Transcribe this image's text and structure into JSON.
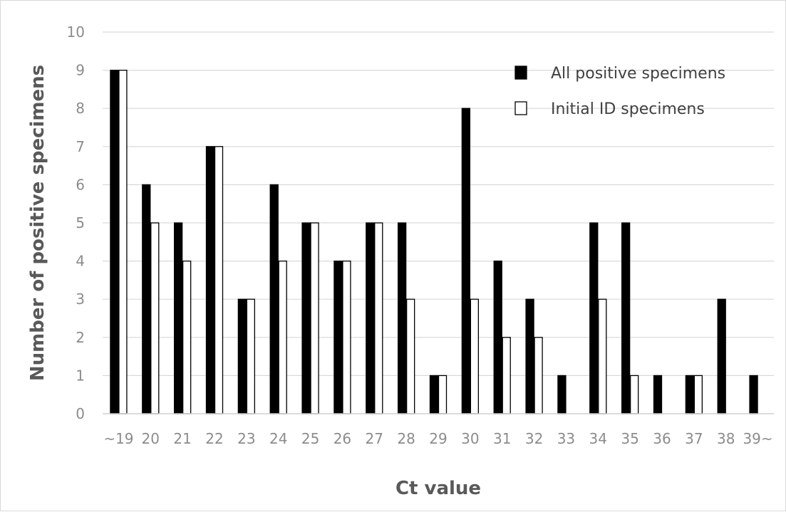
{
  "chart_data": {
    "type": "bar",
    "xlabel": "Ct value",
    "ylabel": "Number of positive specimens",
    "ylim": [
      0,
      10
    ],
    "yticks": [
      0,
      1,
      2,
      3,
      4,
      5,
      6,
      7,
      8,
      9,
      10
    ],
    "grid": true,
    "legend_position": "top-right",
    "categories": [
      "~19",
      "20",
      "21",
      "22",
      "23",
      "24",
      "25",
      "26",
      "27",
      "28",
      "29",
      "30",
      "31",
      "32",
      "33",
      "34",
      "35",
      "36",
      "37",
      "38",
      "39~"
    ],
    "series": [
      {
        "name": "All positive specimens",
        "color": "#000000",
        "values": [
          9,
          6,
          5,
          7,
          3,
          6,
          5,
          4,
          5,
          5,
          1,
          8,
          4,
          3,
          1,
          5,
          5,
          1,
          1,
          3,
          1
        ]
      },
      {
        "name": "Initial ID specimens",
        "color": "#ffffff",
        "values": [
          9,
          5,
          4,
          7,
          3,
          4,
          5,
          4,
          5,
          3,
          1,
          3,
          2,
          2,
          0,
          3,
          1,
          0,
          1,
          0,
          0
        ]
      }
    ]
  }
}
